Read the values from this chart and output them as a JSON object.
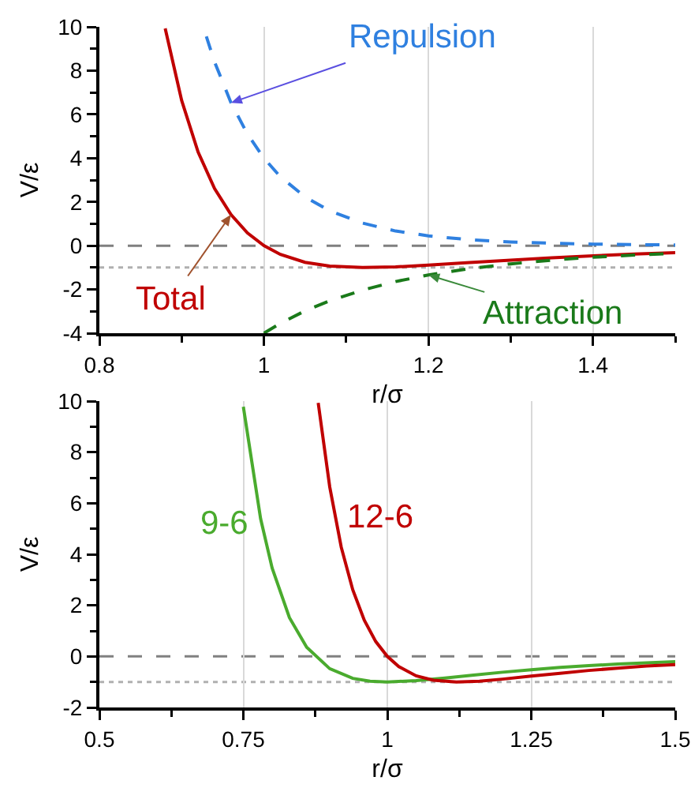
{
  "chart_data": [
    {
      "type": "line",
      "xlabel": "r/σ",
      "ylabel": "V/ε",
      "xlim": [
        0.8,
        1.5
      ],
      "xticks": [
        0.8,
        1,
        1.2,
        1.4
      ],
      "ylim": [
        -4,
        10
      ],
      "yticks": [
        -4,
        -2,
        0,
        2,
        4,
        6,
        8,
        10
      ],
      "grid": "x",
      "marker": "none",
      "ref_lines": [
        {
          "axis": "y",
          "value": 0,
          "color": "#808080",
          "line_style": "dashed"
        },
        {
          "axis": "y",
          "value": -1,
          "color": "#b0b0b0",
          "line_style": "dotted"
        }
      ],
      "series": [
        {
          "name": "Repulsion",
          "color": "#2f80e0",
          "line_style": "dashed",
          "x": [
            0.93,
            0.94,
            0.96,
            0.98,
            1.0,
            1.02,
            1.05,
            1.08,
            1.12,
            1.16,
            1.2,
            1.25,
            1.3,
            1.35,
            1.4,
            1.45,
            1.5
          ],
          "values": [
            9.56,
            8.4,
            6.53,
            5.1,
            4,
            3.15,
            2.23,
            1.59,
            1.03,
            0.67,
            0.45,
            0.27,
            0.17,
            0.11,
            0.07,
            0.05,
            0.03
          ]
        },
        {
          "name": "Total",
          "color": "#c00000",
          "line_style": "solid",
          "x": [
            0.88,
            0.9,
            0.92,
            0.94,
            0.96,
            0.98,
            1.0,
            1.02,
            1.05,
            1.08,
            1.12,
            1.16,
            1.2,
            1.25,
            1.3,
            1.35,
            1.4,
            1.45,
            1.5
          ],
          "values": [
            9.93,
            6.64,
            4.28,
            2.61,
            1.42,
            0.58,
            0,
            -0.4,
            -0.76,
            -0.93,
            -1.0,
            -0.97,
            -0.89,
            -0.77,
            -0.66,
            -0.55,
            -0.46,
            -0.38,
            -0.32
          ]
        },
        {
          "name": "Attraction",
          "color": "#1a7a1a",
          "line_style": "dashed",
          "x": [
            1.0,
            1.02,
            1.05,
            1.08,
            1.12,
            1.16,
            1.2,
            1.25,
            1.3,
            1.35,
            1.4,
            1.45,
            1.5
          ],
          "values": [
            -4,
            -3.55,
            -2.98,
            -2.52,
            -2.03,
            -1.64,
            -1.34,
            -1.05,
            -0.83,
            -0.66,
            -0.53,
            -0.43,
            -0.35
          ]
        }
      ]
    },
    {
      "type": "line",
      "xlabel": "r/σ",
      "ylabel": "V/ε",
      "xlim": [
        0.5,
        1.5
      ],
      "xticks": [
        0.5,
        0.75,
        1,
        1.25,
        1.5
      ],
      "ylim": [
        -2,
        10
      ],
      "yticks": [
        -2,
        0,
        2,
        4,
        6,
        8,
        10
      ],
      "grid": "x",
      "marker": "none",
      "ref_lines": [
        {
          "axis": "y",
          "value": 0,
          "color": "#808080",
          "line_style": "dashed"
        },
        {
          "axis": "y",
          "value": -1,
          "color": "#b0b0b0",
          "line_style": "dotted"
        }
      ],
      "series": [
        {
          "name": "9-6",
          "color": "#4aab2e",
          "line_style": "solid",
          "x": [
            0.75,
            0.78,
            0.8,
            0.83,
            0.86,
            0.9,
            0.94,
            0.97,
            1.0,
            1.05,
            1.1,
            1.15,
            1.2,
            1.25,
            1.3,
            1.35,
            1.4,
            1.45,
            1.5
          ],
          "values": [
            9.78,
            5.39,
            3.46,
            1.52,
            0.36,
            -0.48,
            -0.86,
            -0.97,
            -1,
            -0.95,
            -0.85,
            -0.73,
            -0.62,
            -0.52,
            -0.43,
            -0.36,
            -0.3,
            -0.25,
            -0.21
          ]
        },
        {
          "name": "12-6",
          "color": "#c00000",
          "line_style": "solid",
          "x": [
            0.88,
            0.9,
            0.92,
            0.94,
            0.96,
            0.98,
            1.0,
            1.02,
            1.05,
            1.08,
            1.12,
            1.16,
            1.2,
            1.25,
            1.3,
            1.35,
            1.4,
            1.45,
            1.5
          ],
          "values": [
            9.93,
            6.64,
            4.28,
            2.61,
            1.42,
            0.58,
            0,
            -0.4,
            -0.76,
            -0.93,
            -1.0,
            -0.97,
            -0.89,
            -0.77,
            -0.66,
            -0.55,
            -0.46,
            -0.38,
            -0.32
          ]
        }
      ]
    }
  ]
}
